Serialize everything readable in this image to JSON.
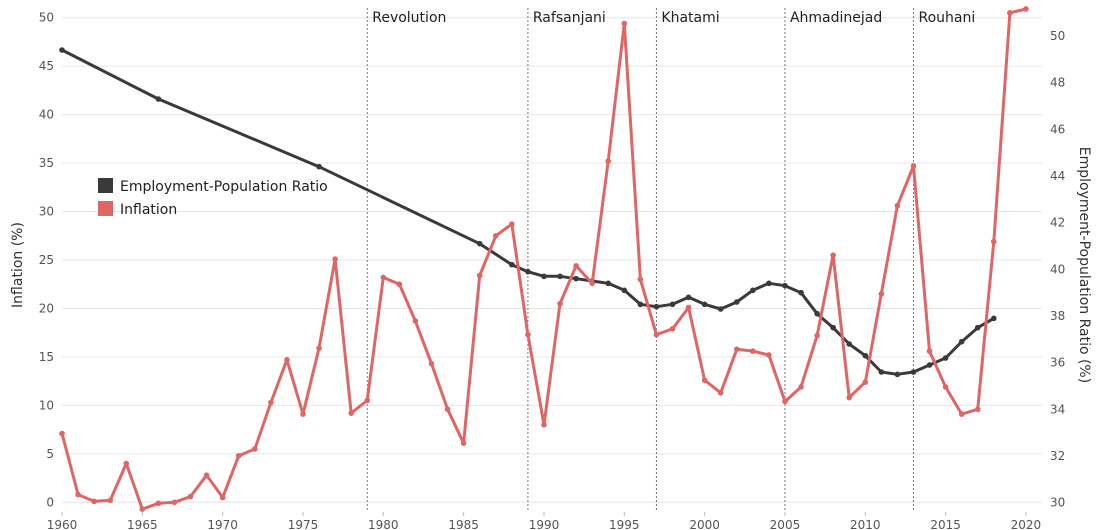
{
  "chart_data": {
    "type": "line",
    "xlabel": "",
    "ylabel_left": "Inflation (%)",
    "ylabel_right": "Employment-Population Ratio (%)",
    "xlim": [
      1960,
      2021
    ],
    "ylim_left": [
      -1,
      51
    ],
    "ylim_right": [
      29.6,
      51.2
    ],
    "x_ticks": [
      1960,
      1965,
      1970,
      1975,
      1980,
      1985,
      1990,
      1995,
      2000,
      2005,
      2010,
      2015,
      2020
    ],
    "y_ticks_left": [
      0,
      5,
      10,
      15,
      20,
      25,
      30,
      35,
      40,
      45,
      50
    ],
    "y_ticks_right": [
      30,
      32,
      34,
      36,
      38,
      40,
      42,
      44,
      46,
      48,
      50
    ],
    "grid": true,
    "legend_position": "middle-left",
    "eras": [
      {
        "label": "Revolution",
        "year": 1979
      },
      {
        "label": "Rafsanjani",
        "year": 1989
      },
      {
        "label": "Khatami",
        "year": 1997
      },
      {
        "label": "Ahmadinejad",
        "year": 2005
      },
      {
        "label": "Rouhani",
        "year": 2013
      }
    ],
    "series": [
      {
        "name": "Employment-Population Ratio",
        "axis": "right",
        "color": "#3a3a3a",
        "x": [
          1960,
          1966,
          1976,
          1986,
          1988,
          1989,
          1990,
          1991,
          1992,
          1993,
          1994,
          1995,
          1996,
          1997,
          1998,
          1999,
          2000,
          2001,
          2002,
          2003,
          2004,
          2005,
          2006,
          2007,
          2008,
          2009,
          2010,
          2011,
          2012,
          2013,
          2014,
          2015,
          2016,
          2017,
          2018
        ],
        "y": [
          49.4,
          47.3,
          44.4,
          41.1,
          40.2,
          39.9,
          39.7,
          39.7,
          39.6,
          39.5,
          39.4,
          39.1,
          38.5,
          38.4,
          38.5,
          38.8,
          38.5,
          38.3,
          38.6,
          39.1,
          39.4,
          39.3,
          39.0,
          38.1,
          37.5,
          36.8,
          36.3,
          35.6,
          35.5,
          35.6,
          35.9,
          36.2,
          36.9,
          37.5,
          37.9
        ]
      },
      {
        "name": "Inflation",
        "axis": "left",
        "color": "#e06666",
        "x": [
          1960,
          1961,
          1962,
          1963,
          1964,
          1965,
          1966,
          1967,
          1968,
          1969,
          1970,
          1971,
          1972,
          1973,
          1974,
          1975,
          1976,
          1977,
          1978,
          1979,
          1980,
          1981,
          1982,
          1983,
          1984,
          1985,
          1986,
          1987,
          1988,
          1989,
          1990,
          1991,
          1992,
          1993,
          1994,
          1995,
          1996,
          1997,
          1998,
          1999,
          2000,
          2001,
          2002,
          2003,
          2004,
          2005,
          2006,
          2007,
          2008,
          2009,
          2010,
          2011,
          2012,
          2013,
          2014,
          2015,
          2016,
          2017,
          2018,
          2019,
          2020
        ],
        "y": [
          7.1,
          0.8,
          0.1,
          0.2,
          4.0,
          -0.7,
          -0.1,
          0.0,
          0.6,
          2.8,
          0.5,
          4.8,
          5.5,
          10.3,
          14.7,
          9.1,
          15.9,
          25.1,
          9.2,
          10.5,
          23.2,
          22.5,
          18.7,
          14.3,
          9.6,
          6.1,
          23.4,
          27.5,
          28.7,
          17.3,
          8.0,
          20.5,
          24.4,
          22.6,
          35.2,
          49.4,
          23.0,
          17.3,
          17.9,
          20.1,
          12.6,
          11.3,
          15.8,
          15.6,
          15.2,
          10.4,
          11.9,
          17.2,
          25.5,
          10.8,
          12.4,
          21.5,
          30.6,
          34.7,
          15.6,
          11.9,
          9.1,
          9.6,
          26.9,
          50.5,
          50.9
        ]
      }
    ]
  }
}
